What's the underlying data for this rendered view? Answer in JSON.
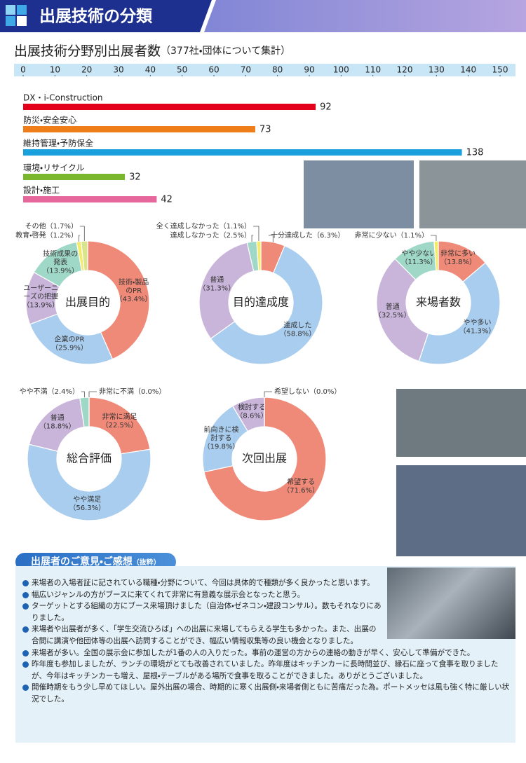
{
  "header": {
    "title": "出展技術の分類"
  },
  "chart_data": [
    {
      "type": "bar",
      "orientation": "horizontal",
      "title": "出展技術分野別出展者数",
      "subtitle": "（377社・団体について集計）",
      "categories": [
        "DX・i-Construction",
        "防災・安全安心",
        "維持管理・予防保全",
        "環境・リサイクル",
        "設計・施工"
      ],
      "values": [
        92,
        73,
        138,
        32,
        42
      ],
      "colors": [
        "#e3001b",
        "#ee7d1a",
        "#1aa0dc",
        "#7ab72f",
        "#e5679b"
      ],
      "xlim": [
        0,
        150
      ],
      "xticks": [
        0,
        10,
        20,
        30,
        40,
        50,
        60,
        70,
        80,
        90,
        100,
        110,
        120,
        130,
        140,
        150
      ]
    },
    {
      "type": "donut",
      "title": "出展目的",
      "categories": [
        "技術・製品のPR",
        "企業のPR",
        "ユーザーニーズの把握",
        "技術成果の発表",
        "教育・啓発",
        "その他"
      ],
      "values": [
        43.4,
        25.9,
        13.9,
        13.9,
        1.2,
        1.7
      ],
      "value_labels": [
        "（43.4%）",
        "（25.9%）",
        "（13.9%）",
        "（13.9%）",
        "（1.2%）",
        "（1.7%）"
      ],
      "colors": [
        "#f08a78",
        "#a9cdee",
        "#c9b4da",
        "#9fd8c6",
        "#f3ec6b",
        "#d8e58a"
      ]
    },
    {
      "type": "donut",
      "title": "目的達成度",
      "categories": [
        "十分達成した",
        "達成した",
        "普通",
        "達成しなかった",
        "全く達成しなかった"
      ],
      "values": [
        6.3,
        58.8,
        31.3,
        2.5,
        1.1
      ],
      "value_labels": [
        "（6.3%）",
        "（58.8%）",
        "（31.3%）",
        "（2.5%）",
        "（1.1%）"
      ],
      "colors": [
        "#f08a78",
        "#a9cdee",
        "#c9b4da",
        "#9fd8c6",
        "#f3ec6b"
      ]
    },
    {
      "type": "donut",
      "title": "来場者数",
      "categories": [
        "非常に多い",
        "やや多い",
        "普通",
        "やや少ない",
        "非常に少ない"
      ],
      "values": [
        13.8,
        41.3,
        32.5,
        11.3,
        1.1
      ],
      "value_labels": [
        "（13.8%）",
        "（41.3%）",
        "（32.5%）",
        "（11.3%）",
        "（1.1%）"
      ],
      "colors": [
        "#f08a78",
        "#a9cdee",
        "#c9b4da",
        "#9fd8c6",
        "#f3ec6b"
      ]
    },
    {
      "type": "donut",
      "title": "総合評価",
      "categories": [
        "非常に満足",
        "やや満足",
        "普通",
        "やや不満",
        "非常に不満"
      ],
      "values": [
        22.5,
        56.3,
        18.8,
        2.4,
        0.0
      ],
      "value_labels": [
        "（22.5%）",
        "（56.3%）",
        "（18.8%）",
        "（2.4%）",
        "（0.0%）"
      ],
      "colors": [
        "#f08a78",
        "#a9cdee",
        "#c9b4da",
        "#9fd8c6",
        "#f3ec6b"
      ]
    },
    {
      "type": "donut",
      "title": "次回出展",
      "categories": [
        "希望する",
        "前向きに検討する",
        "検討する",
        "希望しない"
      ],
      "values": [
        71.6,
        19.8,
        8.6,
        0.0
      ],
      "value_labels": [
        "（71.6%）",
        "（19.8%）",
        "（8.6%）",
        "（0.0%）"
      ],
      "colors": [
        "#f08a78",
        "#a9cdee",
        "#c9b4da",
        "#9fd8c6"
      ]
    }
  ],
  "comments": {
    "title": "出展者のご意見・ご感想",
    "note": "（抜粋）",
    "items": [
      "来場者の入場者証に記されている職種・分野について、今回は具体的で種類が多く良かったと思います。",
      "幅広いジャンルの方がブースに来てくれて非常に有意義な展示会となったと思う。",
      "ターゲットとする組織の方にブース来場頂けました（自治体・ゼネコン・建設コンサル）。数もそれなりにありました。",
      "来場者や出展者が多く、「学生交流ひろば」への出展に来場してもらえる学生も多かった。また、出展の合間に講演や他団体等の出展へ訪問することができ、幅広い情報収集等の良い機会となりました。",
      "来場者が多い。全国の展示会に参加したが1番の人の入りだった。事前の運営の方からの連絡の動きが早く、安心して準備ができた。",
      "昨年度も参加しましたが、ランチの環境がとても改善されていました。昨年度はキッチンカーに長時間並び、縁石に座って食事を取りましたが、今年はキッチンカーも増え、屋根・テーブルがある場所で食事を取ることができました。ありがとうございました。",
      "開催時期をもう少し早めてほしい。屋外出展の場合、時期的に寒く出展側・来場者側ともに苦痛だった為。ポートメッセは風も強く特に厳しい状況でした。"
    ]
  }
}
